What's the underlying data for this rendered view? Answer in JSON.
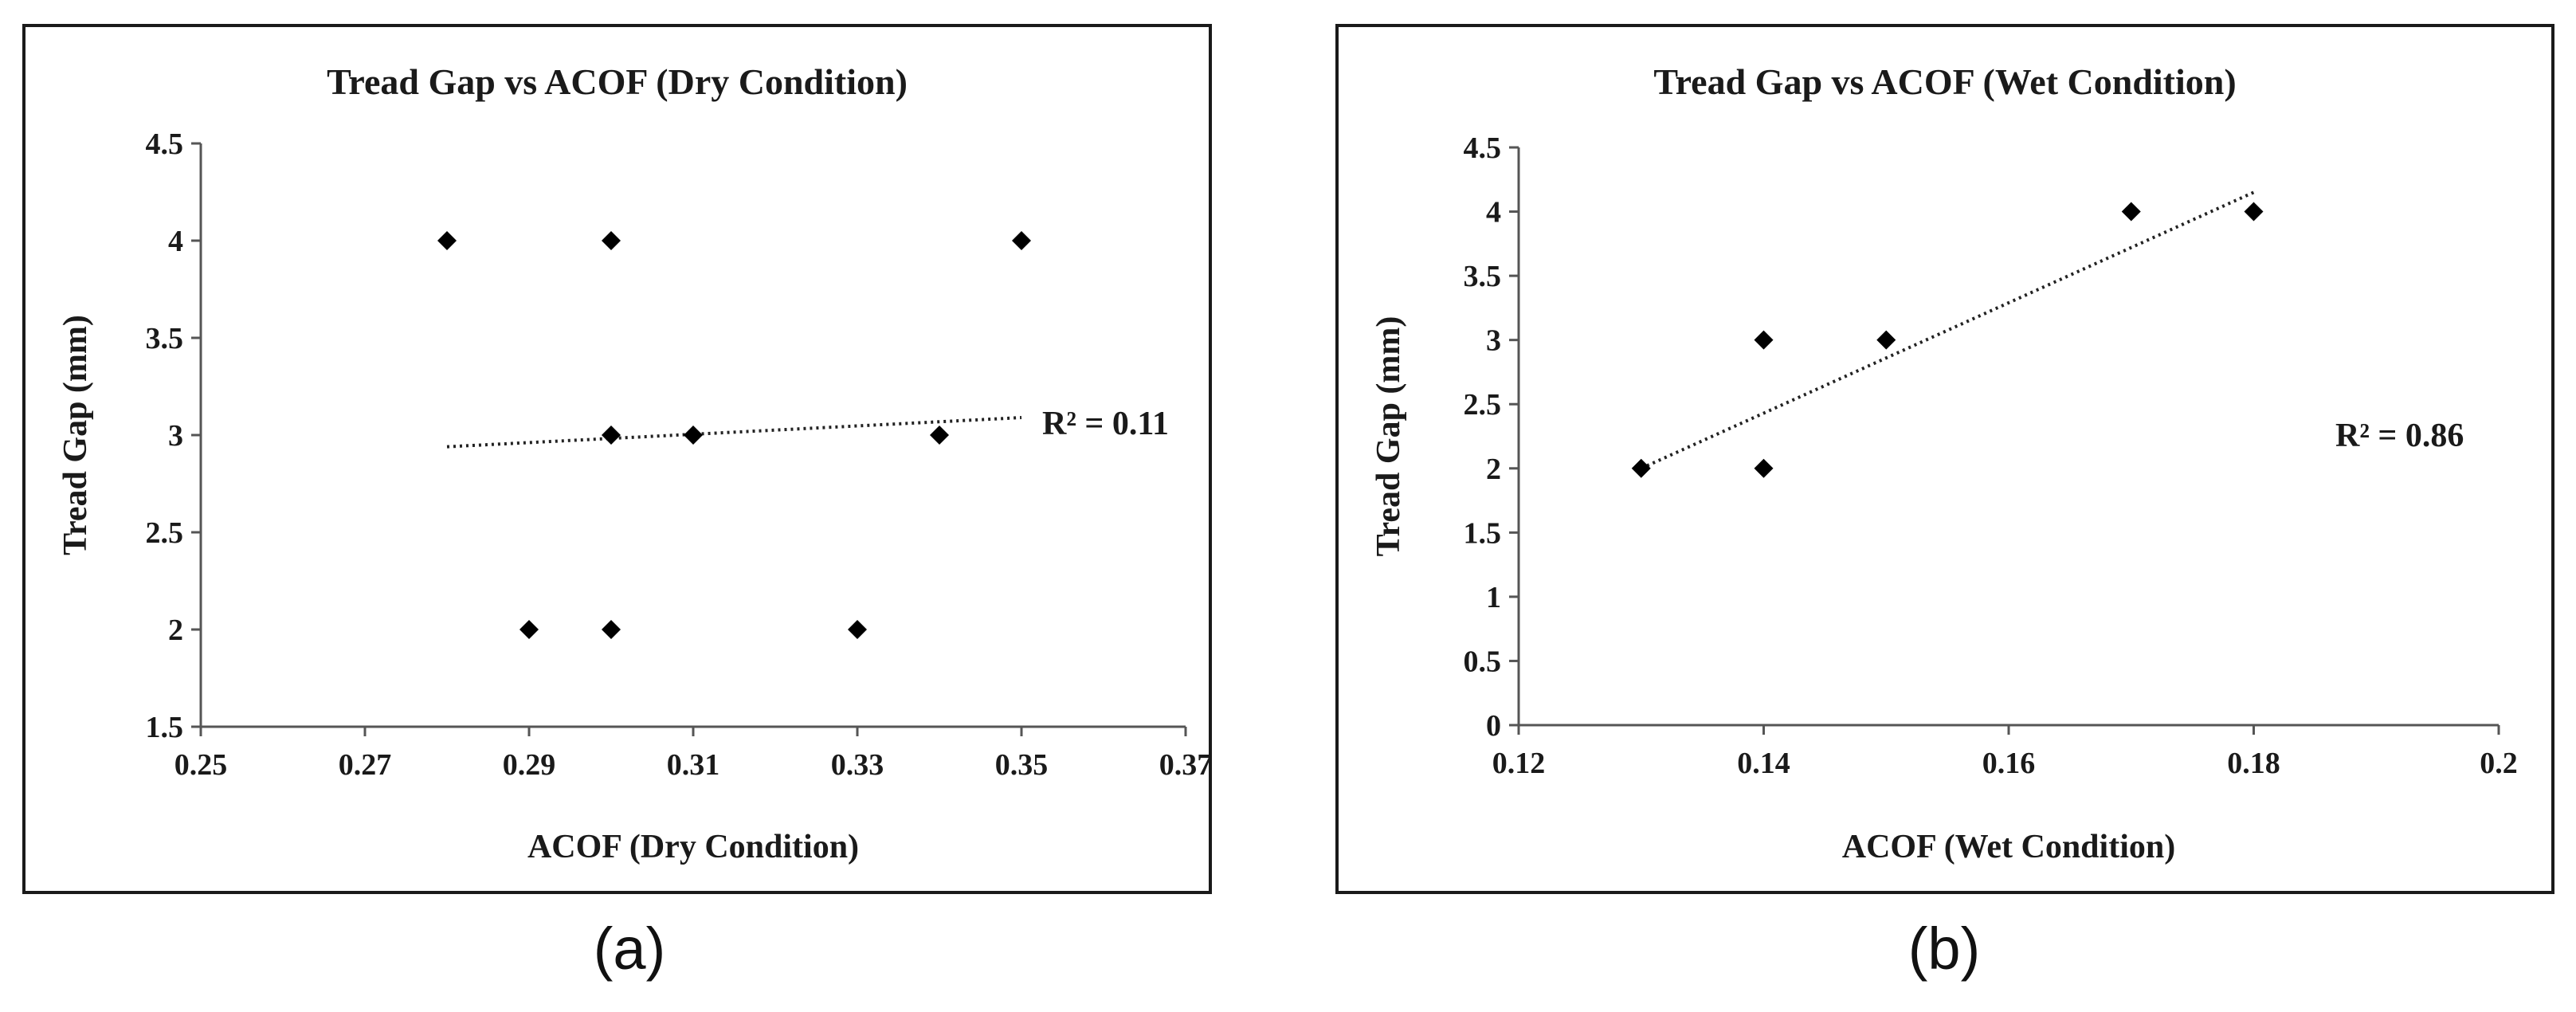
{
  "chart_data": [
    {
      "type": "scatter",
      "panel_label": "(a)",
      "title": "Tread Gap vs ACOF (Dry Condition)",
      "xlabel": "ACOF (Dry Condition)",
      "ylabel": "Tread Gap (mm)",
      "xlim": [
        0.25,
        0.37
      ],
      "ylim": [
        1.5,
        4.5
      ],
      "xticks": [
        "0.25",
        "0.27",
        "0.29",
        "0.31",
        "0.33",
        "0.35",
        "0.37"
      ],
      "yticks": [
        "1.5",
        "2",
        "2.5",
        "3",
        "3.5",
        "4",
        "4.5"
      ],
      "points": [
        {
          "x": 0.28,
          "y": 4
        },
        {
          "x": 0.29,
          "y": 2
        },
        {
          "x": 0.3,
          "y": 4
        },
        {
          "x": 0.3,
          "y": 3
        },
        {
          "x": 0.3,
          "y": 2
        },
        {
          "x": 0.31,
          "y": 3
        },
        {
          "x": 0.33,
          "y": 2
        },
        {
          "x": 0.34,
          "y": 3
        },
        {
          "x": 0.35,
          "y": 4
        }
      ],
      "trendline": {
        "x": [
          0.28,
          0.35
        ],
        "y": [
          2.94,
          3.09
        ]
      },
      "r2_text": "R² = 0.11",
      "marker_color": "#000000",
      "grid": false
    },
    {
      "type": "scatter",
      "panel_label": "(b)",
      "title": "Tread Gap vs ACOF (Wet Condition)",
      "xlabel": "ACOF (Wet Condition)",
      "ylabel": "Tread Gap (mm)",
      "xlim": [
        0.12,
        0.2
      ],
      "ylim": [
        0,
        4.5
      ],
      "xticks": [
        "0.12",
        "0.14",
        "0.16",
        "0.18",
        "0.2"
      ],
      "yticks": [
        "0",
        "0.5",
        "1",
        "1.5",
        "2",
        "2.5",
        "3",
        "3.5",
        "4",
        "4.5"
      ],
      "points": [
        {
          "x": 0.13,
          "y": 2
        },
        {
          "x": 0.14,
          "y": 3
        },
        {
          "x": 0.14,
          "y": 2
        },
        {
          "x": 0.15,
          "y": 3
        },
        {
          "x": 0.17,
          "y": 4
        },
        {
          "x": 0.18,
          "y": 4
        }
      ],
      "trendline": {
        "x": [
          0.13,
          0.18
        ],
        "y": [
          2.0,
          4.15
        ]
      },
      "r2_text": "R² = 0.86",
      "marker_color": "#000000",
      "grid": false
    }
  ]
}
